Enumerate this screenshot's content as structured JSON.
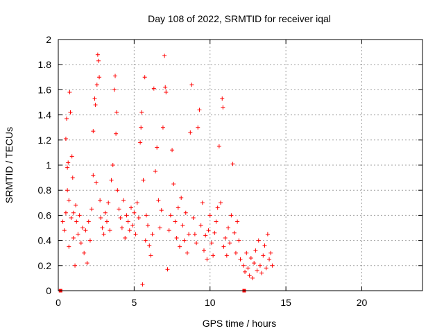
{
  "chart_data": {
    "type": "scatter",
    "title": "Day 108 of 2022, SRMTID for receiver iqal",
    "xlabel": "GPS time / hours",
    "ylabel": "SRMTID / TECUs",
    "xlim": [
      0,
      24
    ],
    "ylim": [
      0,
      2
    ],
    "xticks": [
      0,
      5,
      10,
      15,
      20
    ],
    "yticks": [
      0,
      0.2,
      0.4,
      0.6,
      0.8,
      1,
      1.2,
      1.4,
      1.6,
      1.8,
      2
    ],
    "grid": true,
    "marker": "+",
    "color": "#ff0000",
    "axis_markers_x": [
      0.15,
      12.25
    ],
    "series": [
      {
        "name": "SRMTID",
        "points": [
          [
            0.3,
            0.55
          ],
          [
            0.4,
            0.48
          ],
          [
            0.5,
            0.62
          ],
          [
            0.5,
            1.21
          ],
          [
            0.55,
            1.37
          ],
          [
            0.6,
            0.98
          ],
          [
            0.6,
            0.8
          ],
          [
            0.65,
            1.02
          ],
          [
            0.7,
            0.72
          ],
          [
            0.7,
            0.35
          ],
          [
            0.75,
            1.58
          ],
          [
            0.8,
            1.42
          ],
          [
            0.85,
            0.58
          ],
          [
            0.9,
            1.07
          ],
          [
            0.95,
            0.9
          ],
          [
            1.0,
            0.62
          ],
          [
            1.0,
            0.42
          ],
          [
            1.1,
            0.2
          ],
          [
            1.15,
            0.68
          ],
          [
            1.2,
            0.55
          ],
          [
            1.3,
            0.45
          ],
          [
            1.4,
            0.6
          ],
          [
            1.5,
            0.38
          ],
          [
            1.6,
            0.5
          ],
          [
            1.7,
            0.3
          ],
          [
            1.8,
            0.48
          ],
          [
            1.9,
            0.22
          ],
          [
            2.0,
            0.55
          ],
          [
            2.1,
            0.4
          ],
          [
            2.2,
            0.65
          ],
          [
            2.3,
            0.92
          ],
          [
            2.3,
            1.27
          ],
          [
            2.4,
            1.53
          ],
          [
            2.45,
            1.48
          ],
          [
            2.5,
            0.86
          ],
          [
            2.55,
            1.64
          ],
          [
            2.6,
            1.88
          ],
          [
            2.65,
            1.83
          ],
          [
            2.7,
            1.7
          ],
          [
            2.75,
            0.72
          ],
          [
            2.8,
            0.58
          ],
          [
            2.9,
            0.5
          ],
          [
            3.0,
            0.45
          ],
          [
            3.1,
            0.62
          ],
          [
            3.2,
            0.55
          ],
          [
            3.3,
            0.7
          ],
          [
            3.4,
            0.48
          ],
          [
            3.5,
            0.88
          ],
          [
            3.6,
            1.0
          ],
          [
            3.7,
            1.6
          ],
          [
            3.75,
            1.71
          ],
          [
            3.8,
            1.25
          ],
          [
            3.85,
            1.42
          ],
          [
            3.9,
            0.8
          ],
          [
            4.0,
            0.65
          ],
          [
            4.1,
            0.58
          ],
          [
            4.2,
            0.5
          ],
          [
            4.3,
            0.72
          ],
          [
            4.4,
            0.42
          ],
          [
            4.5,
            0.6
          ],
          [
            4.6,
            0.55
          ],
          [
            4.7,
            0.48
          ],
          [
            4.8,
            0.66
          ],
          [
            4.9,
            0.52
          ],
          [
            5.0,
            0.62
          ],
          [
            5.1,
            0.45
          ],
          [
            5.2,
            0.7
          ],
          [
            5.3,
            0.58
          ],
          [
            5.4,
            1.18
          ],
          [
            5.45,
            1.3
          ],
          [
            5.5,
            1.42
          ],
          [
            5.55,
            0.05
          ],
          [
            5.6,
            0.88
          ],
          [
            5.7,
            1.7
          ],
          [
            5.75,
            0.4
          ],
          [
            5.8,
            0.6
          ],
          [
            5.9,
            0.52
          ],
          [
            6.0,
            0.36
          ],
          [
            6.1,
            0.28
          ],
          [
            6.2,
            0.45
          ],
          [
            6.3,
            1.61
          ],
          [
            6.4,
            0.95
          ],
          [
            6.5,
            1.14
          ],
          [
            6.6,
            0.72
          ],
          [
            6.7,
            0.5
          ],
          [
            6.8,
            0.64
          ],
          [
            6.9,
            1.3
          ],
          [
            7.0,
            1.87
          ],
          [
            7.05,
            1.62
          ],
          [
            7.1,
            1.58
          ],
          [
            7.2,
            0.17
          ],
          [
            7.3,
            0.48
          ],
          [
            7.4,
            0.6
          ],
          [
            7.5,
            1.12
          ],
          [
            7.6,
            0.85
          ],
          [
            7.7,
            0.55
          ],
          [
            7.8,
            0.42
          ],
          [
            7.9,
            0.66
          ],
          [
            8.0,
            0.35
          ],
          [
            8.1,
            0.74
          ],
          [
            8.2,
            0.52
          ],
          [
            8.3,
            0.4
          ],
          [
            8.4,
            0.62
          ],
          [
            8.5,
            0.3
          ],
          [
            8.6,
            0.45
          ],
          [
            8.7,
            1.26
          ],
          [
            8.8,
            1.64
          ],
          [
            8.9,
            0.58
          ],
          [
            9.0,
            0.45
          ],
          [
            9.1,
            0.38
          ],
          [
            9.2,
            1.3
          ],
          [
            9.3,
            1.44
          ],
          [
            9.4,
            0.52
          ],
          [
            9.5,
            0.7
          ],
          [
            9.6,
            0.32
          ],
          [
            9.7,
            0.44
          ],
          [
            9.8,
            0.25
          ],
          [
            9.9,
            0.48
          ],
          [
            10.0,
            0.6
          ],
          [
            10.1,
            0.38
          ],
          [
            10.2,
            0.28
          ],
          [
            10.3,
            0.46
          ],
          [
            10.4,
            0.55
          ],
          [
            10.5,
            0.66
          ],
          [
            10.6,
            1.15
          ],
          [
            10.7,
            0.7
          ],
          [
            10.8,
            1.53
          ],
          [
            10.85,
            1.46
          ],
          [
            10.9,
            0.35
          ],
          [
            11.0,
            0.42
          ],
          [
            11.1,
            0.28
          ],
          [
            11.2,
            0.5
          ],
          [
            11.3,
            0.38
          ],
          [
            11.4,
            0.6
          ],
          [
            11.5,
            1.01
          ],
          [
            11.6,
            0.46
          ],
          [
            11.7,
            0.3
          ],
          [
            11.8,
            0.55
          ],
          [
            11.9,
            0.4
          ],
          [
            12.0,
            0.25
          ],
          [
            12.2,
            0.2
          ],
          [
            12.3,
            0.15
          ],
          [
            12.4,
            0.3
          ],
          [
            12.5,
            0.18
          ],
          [
            12.6,
            0.12
          ],
          [
            12.7,
            0.26
          ],
          [
            12.8,
            0.1
          ],
          [
            12.9,
            0.22
          ],
          [
            13.0,
            0.32
          ],
          [
            13.1,
            0.16
          ],
          [
            13.2,
            0.4
          ],
          [
            13.3,
            0.2
          ],
          [
            13.4,
            0.14
          ],
          [
            13.5,
            0.28
          ],
          [
            13.6,
            0.36
          ],
          [
            13.7,
            0.18
          ],
          [
            13.8,
            0.45
          ],
          [
            13.9,
            0.25
          ],
          [
            14.0,
            0.3
          ],
          [
            14.1,
            0.2
          ]
        ]
      }
    ]
  }
}
